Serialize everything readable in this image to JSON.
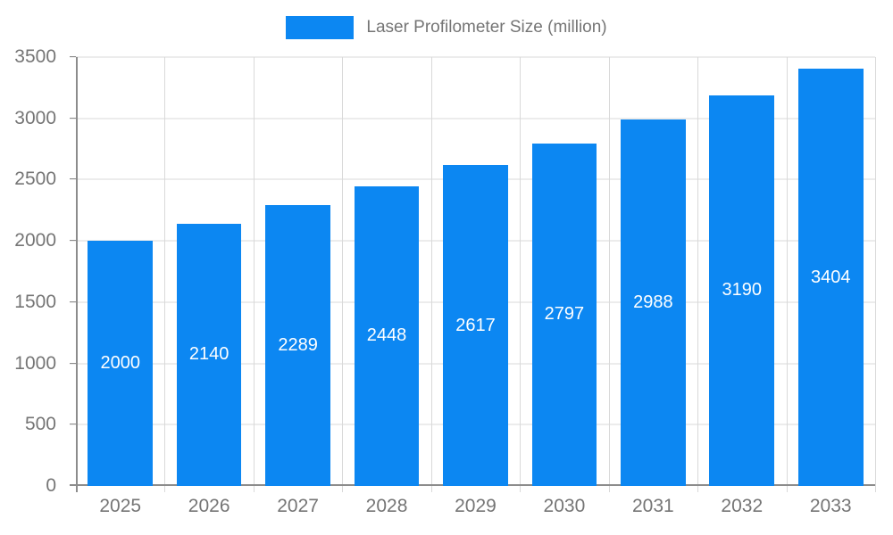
{
  "chart_data": {
    "type": "bar",
    "title": "Laser Profilometer Size (million)",
    "categories": [
      "2025",
      "2026",
      "2027",
      "2028",
      "2029",
      "2030",
      "2031",
      "2032",
      "2033"
    ],
    "values": [
      2000,
      2140,
      2289,
      2448,
      2617,
      2797,
      2988,
      3190,
      3404
    ],
    "xlabel": "",
    "ylabel": "",
    "ylim": [
      0,
      3500
    ],
    "yticks": [
      0,
      500,
      1000,
      1500,
      2000,
      2500,
      3000,
      3500
    ],
    "grid": true,
    "legend_position": "top-center",
    "bar_labels_inside": true,
    "colors": {
      "bar": "#0c87f2",
      "bar_label": "#ffffff",
      "gridline": "#d9d9d9",
      "axis": "#8c8c8c",
      "tick_text": "#757575",
      "legend_text": "#757575",
      "background": "#ffffff"
    }
  }
}
